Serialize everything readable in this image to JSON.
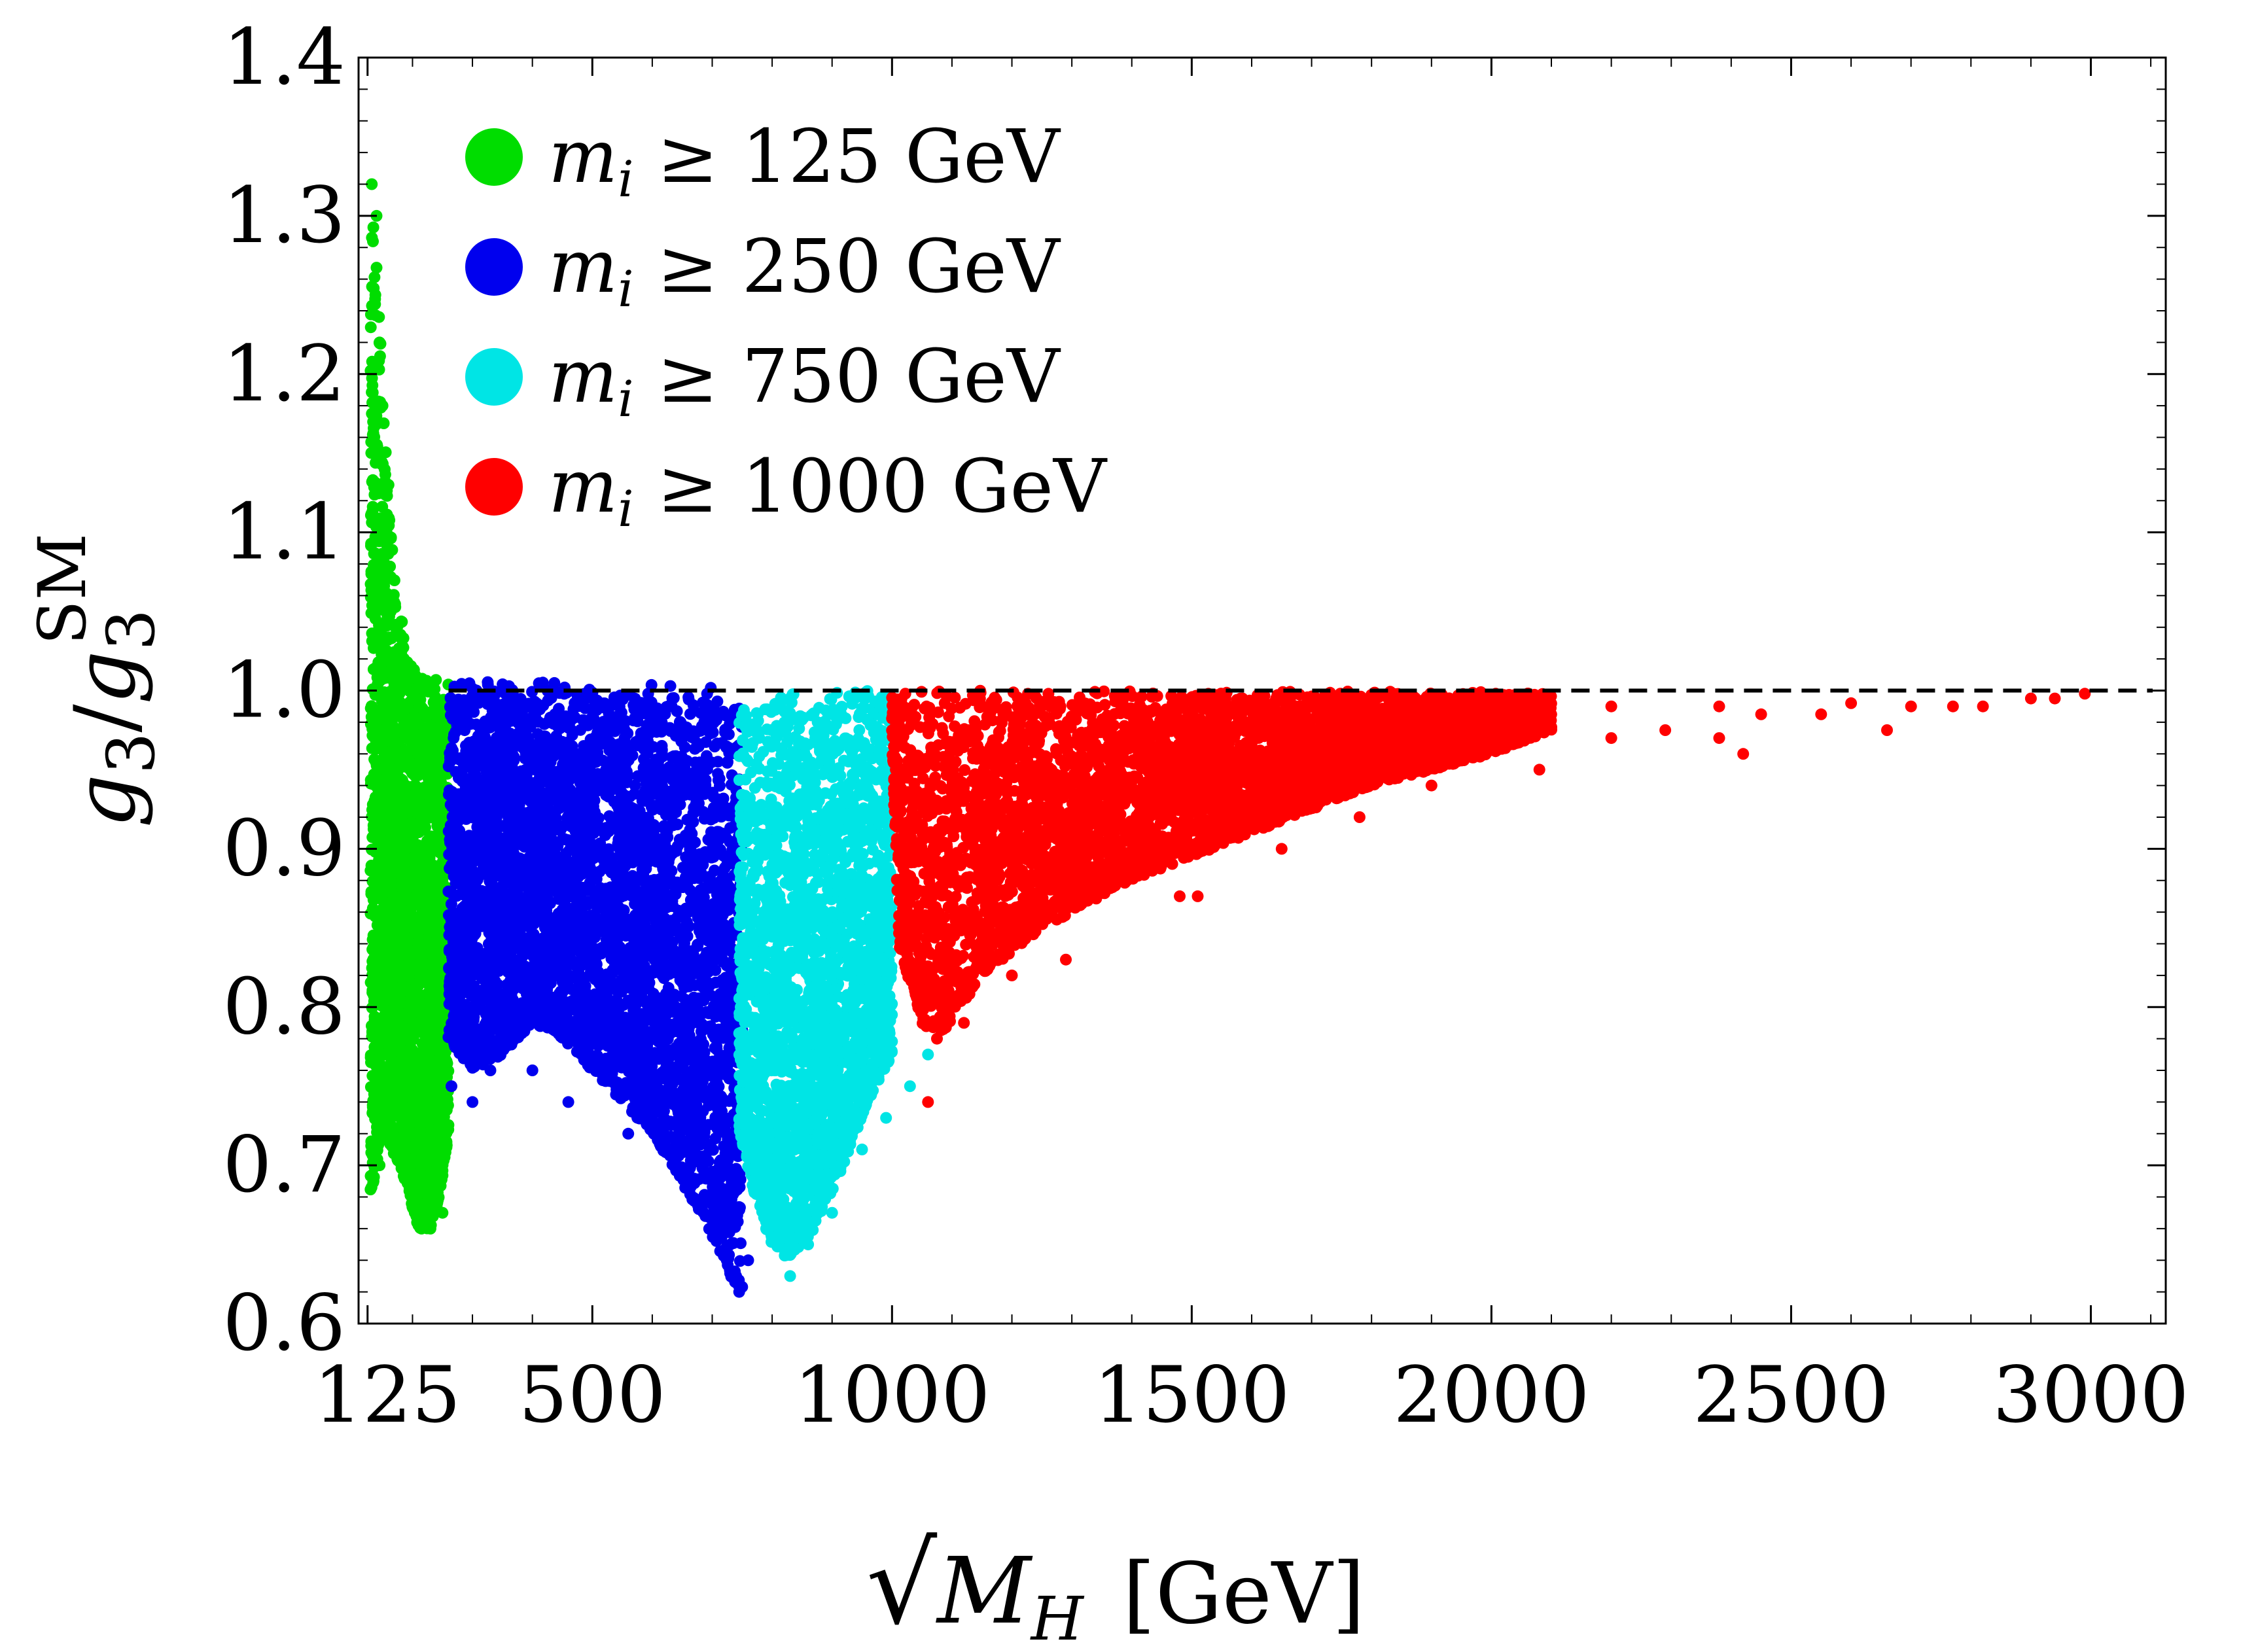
{
  "chart_data": {
    "type": "scatter",
    "xlabel": {
      "radical": "√",
      "symbol": "M",
      "subscript": "H",
      "unit": "[GeV]"
    },
    "ylabel": {
      "numerator": "g",
      "numerator_sub": "3",
      "slash": "/",
      "denominator": "g",
      "denominator_sub": "3",
      "denominator_sup": "SM"
    },
    "xlim": [
      110,
      3125
    ],
    "ylim": [
      0.6,
      1.4
    ],
    "x_ticks": [
      {
        "value": 125,
        "label": "125"
      },
      {
        "value": 500,
        "label": "500"
      },
      {
        "value": 1000,
        "label": "1000"
      },
      {
        "value": 1500,
        "label": "1500"
      },
      {
        "value": 2000,
        "label": "2000"
      },
      {
        "value": 2500,
        "label": "2500"
      },
      {
        "value": 3000,
        "label": "3000"
      }
    ],
    "y_ticks": [
      {
        "value": 0.6,
        "label": "0.6"
      },
      {
        "value": 0.7,
        "label": "0.7"
      },
      {
        "value": 0.8,
        "label": "0.8"
      },
      {
        "value": 0.9,
        "label": "0.9"
      },
      {
        "value": 1.0,
        "label": "1.0"
      },
      {
        "value": 1.1,
        "label": "1.1"
      },
      {
        "value": 1.2,
        "label": "1.2"
      },
      {
        "value": 1.3,
        "label": "1.3"
      },
      {
        "value": 1.4,
        "label": "1.4"
      }
    ],
    "x_minor_step": 100,
    "y_minor_step": 0.02,
    "reference_line": {
      "y": 1.0,
      "style": "dashed",
      "color": "#000000"
    },
    "legend_position": "top-left",
    "series": [
      {
        "name": "m_i ≥ 125 GeV",
        "legend": {
          "symbol": "m",
          "sub": "i",
          "rest": " ≥ 125 GeV"
        },
        "color": "#00dd00",
        "envelope": {
          "x_range": [
            130,
            260
          ],
          "upper": [
            [
              130,
              1.33
            ],
            [
              145,
              1.24
            ],
            [
              160,
              1.12
            ],
            [
              175,
              1.06
            ],
            [
              200,
              1.02
            ],
            [
              230,
              1.008
            ],
            [
              260,
              1.005
            ]
          ],
          "lower": [
            [
              130,
              0.68
            ],
            [
              150,
              0.72
            ],
            [
              180,
              0.7
            ],
            [
              210,
              0.66
            ],
            [
              230,
              0.66
            ],
            [
              245,
              0.68
            ],
            [
              260,
              0.72
            ]
          ]
        },
        "outliers": [
          [
            132,
            1.32
          ],
          [
            140,
            1.3
          ],
          [
            138,
            1.25
          ],
          [
            145,
            1.22
          ],
          [
            150,
            1.18
          ],
          [
            160,
            1.13
          ],
          [
            135,
            0.69
          ],
          [
            145,
            0.7
          ],
          [
            215,
            0.66
          ],
          [
            230,
            0.66
          ],
          [
            250,
            0.67
          ]
        ]
      },
      {
        "name": "m_i ≥ 250 GeV",
        "legend": {
          "symbol": "m",
          "sub": "i",
          "rest": " ≥ 250 GeV"
        },
        "color": "#0000ee",
        "envelope": {
          "x_range": [
            260,
            750
          ],
          "upper": [
            [
              260,
              1.005
            ],
            [
              400,
              1.006
            ],
            [
              550,
              1.005
            ],
            [
              700,
              1.002
            ],
            [
              750,
              1.0
            ]
          ],
          "lower": [
            [
              260,
              0.78
            ],
            [
              300,
              0.76
            ],
            [
              350,
              0.77
            ],
            [
              400,
              0.79
            ],
            [
              450,
              0.78
            ],
            [
              500,
              0.76
            ],
            [
              600,
              0.72
            ],
            [
              680,
              0.67
            ],
            [
              730,
              0.63
            ],
            [
              750,
              0.62
            ]
          ]
        },
        "outliers": [
          [
            265,
            0.75
          ],
          [
            300,
            0.74
          ],
          [
            330,
            0.76
          ],
          [
            400,
            0.76
          ],
          [
            460,
            0.74
          ],
          [
            560,
            0.72
          ],
          [
            640,
            0.7
          ],
          [
            700,
            0.66
          ],
          [
            740,
            0.63
          ],
          [
            745,
            0.62
          ],
          [
            760,
            0.64
          ]
        ]
      },
      {
        "name": "m_i ≥ 750 GeV",
        "legend": {
          "symbol": "m",
          "sub": "i",
          "rest": " ≥ 750 GeV"
        },
        "color": "#00e5e5",
        "envelope": {
          "x_range": [
            745,
            1000
          ],
          "upper": [
            [
              745,
              0.998
            ],
            [
              850,
              1.0
            ],
            [
              1000,
              1.0
            ]
          ],
          "lower": [
            [
              745,
              0.72
            ],
            [
              770,
              0.68
            ],
            [
              800,
              0.65
            ],
            [
              830,
              0.64
            ],
            [
              870,
              0.66
            ],
            [
              920,
              0.7
            ],
            [
              960,
              0.74
            ],
            [
              1000,
              0.77
            ],
            [
              1040,
              0.79
            ]
          ]
        },
        "outliers": [
          [
            790,
            0.66
          ],
          [
            810,
            0.65
          ],
          [
            830,
            0.63
          ],
          [
            860,
            0.65
          ],
          [
            900,
            0.67
          ],
          [
            950,
            0.71
          ],
          [
            990,
            0.73
          ],
          [
            1030,
            0.75
          ],
          [
            1060,
            0.77
          ]
        ]
      },
      {
        "name": "m_i ≥ 1000 GeV",
        "legend": {
          "symbol": "m",
          "sub": "i",
          "rest": " ≥ 1000 GeV"
        },
        "color": "#ff0000",
        "envelope": {
          "x_range": [
            1000,
            2100
          ],
          "upper": [
            [
              1000,
              1.0
            ],
            [
              1500,
              1.0
            ],
            [
              2000,
              0.999
            ],
            [
              2100,
              0.998
            ]
          ],
          "lower": [
            [
              1000,
              0.97
            ],
            [
              1010,
              0.84
            ],
            [
              1050,
              0.79
            ],
            [
              1080,
              0.78
            ],
            [
              1150,
              0.82
            ],
            [
              1250,
              0.85
            ],
            [
              1400,
              0.88
            ],
            [
              1600,
              0.91
            ],
            [
              1800,
              0.94
            ],
            [
              2000,
              0.96
            ],
            [
              2100,
              0.975
            ]
          ]
        },
        "outliers": [
          [
            1060,
            0.74
          ],
          [
            1075,
            0.78
          ],
          [
            1120,
            0.79
          ],
          [
            1200,
            0.82
          ],
          [
            1290,
            0.83
          ],
          [
            1480,
            0.87
          ],
          [
            1510,
            0.87
          ],
          [
            1650,
            0.9
          ],
          [
            1780,
            0.92
          ],
          [
            1900,
            0.94
          ],
          [
            2080,
            0.95
          ],
          [
            2200,
            0.97
          ],
          [
            2290,
            0.975
          ],
          [
            2380,
            0.97
          ],
          [
            2420,
            0.96
          ],
          [
            2550,
            0.985
          ],
          [
            2660,
            0.975
          ],
          [
            2770,
            0.99
          ],
          [
            2900,
            0.995
          ],
          [
            2990,
            0.998
          ],
          [
            2380,
            0.99
          ],
          [
            2200,
            0.99
          ],
          [
            2450,
            0.985
          ],
          [
            2600,
            0.992
          ],
          [
            2700,
            0.99
          ],
          [
            2820,
            0.99
          ],
          [
            2940,
            0.995
          ]
        ]
      }
    ]
  }
}
